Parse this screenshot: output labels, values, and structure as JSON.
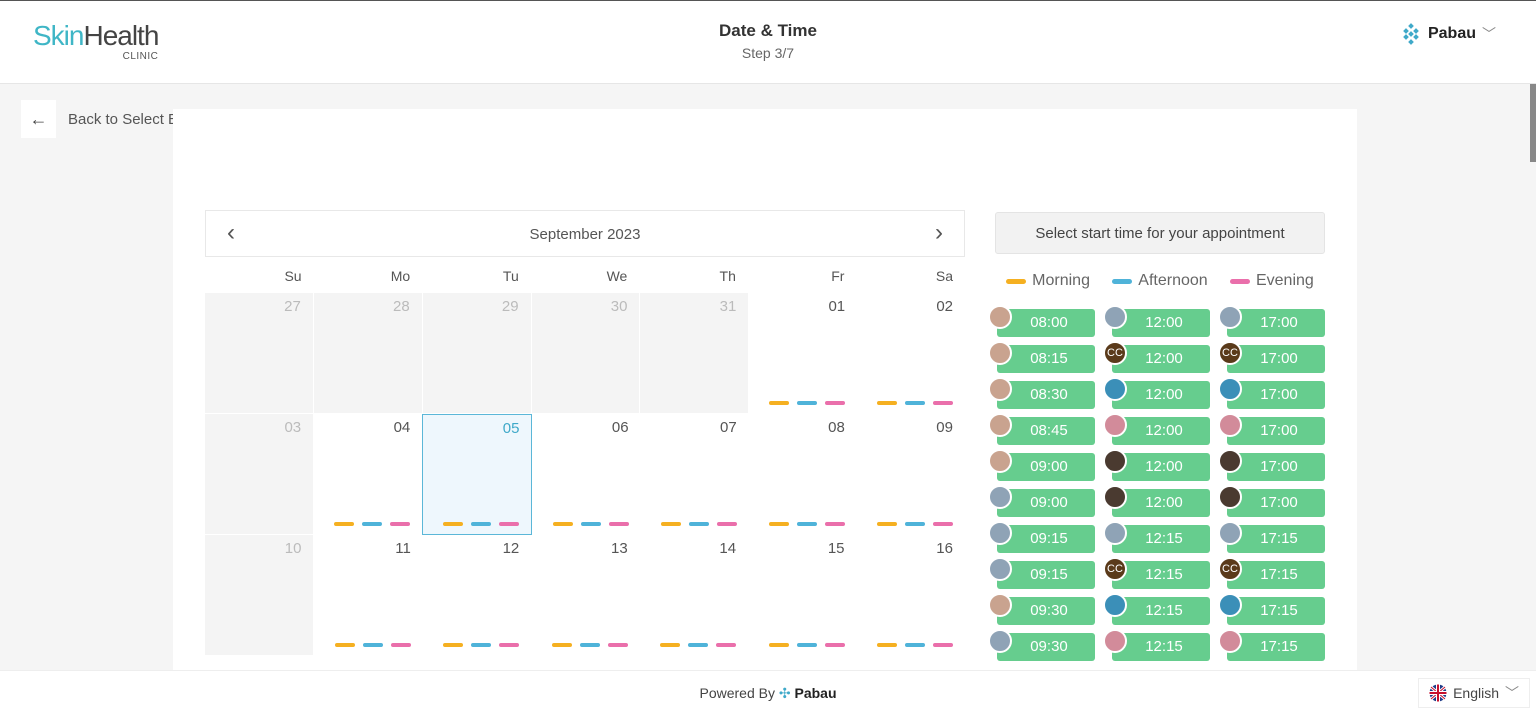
{
  "header": {
    "logo_part1": "Skin",
    "logo_part2": "Health",
    "logo_sub": "CLINIC",
    "title": "Date & Time",
    "step": "Step 3/7",
    "brand": "Pabau"
  },
  "nav": {
    "back_label": "Back to Select Employee"
  },
  "calendar": {
    "month": "September 2023",
    "weekdays": [
      "Su",
      "Mo",
      "Tu",
      "We",
      "Th",
      "Fr",
      "Sa"
    ],
    "weeks": [
      [
        "27",
        "28",
        "29",
        "30",
        "31",
        "01",
        "02"
      ],
      [
        "03",
        "04",
        "05",
        "06",
        "07",
        "08",
        "09"
      ],
      [
        "10",
        "11",
        "12",
        "13",
        "14",
        "15",
        "16"
      ]
    ],
    "selected": "05"
  },
  "times": {
    "heading": "Select start time for your appointment",
    "legend": {
      "morning": "Morning",
      "afternoon": "Afternoon",
      "evening": "Evening"
    },
    "columns": [
      [
        "08:00",
        "08:15",
        "08:30",
        "08:45",
        "09:00",
        "09:00",
        "09:15",
        "09:15",
        "09:30",
        "09:30"
      ],
      [
        "12:00",
        "12:00",
        "12:00",
        "12:00",
        "12:00",
        "12:00",
        "12:15",
        "12:15",
        "12:15",
        "12:15"
      ],
      [
        "17:00",
        "17:00",
        "17:00",
        "17:00",
        "17:00",
        "17:00",
        "17:15",
        "17:15",
        "17:15",
        "17:15"
      ]
    ],
    "avatar_initials": "CC"
  },
  "colors": {
    "morning": "#f5b021",
    "afternoon": "#4fb3d9",
    "evening": "#ea6fab",
    "slot": "#66cd8e"
  },
  "footer": {
    "powered_by": "Powered By",
    "brand": "Pabau",
    "language": "English"
  }
}
